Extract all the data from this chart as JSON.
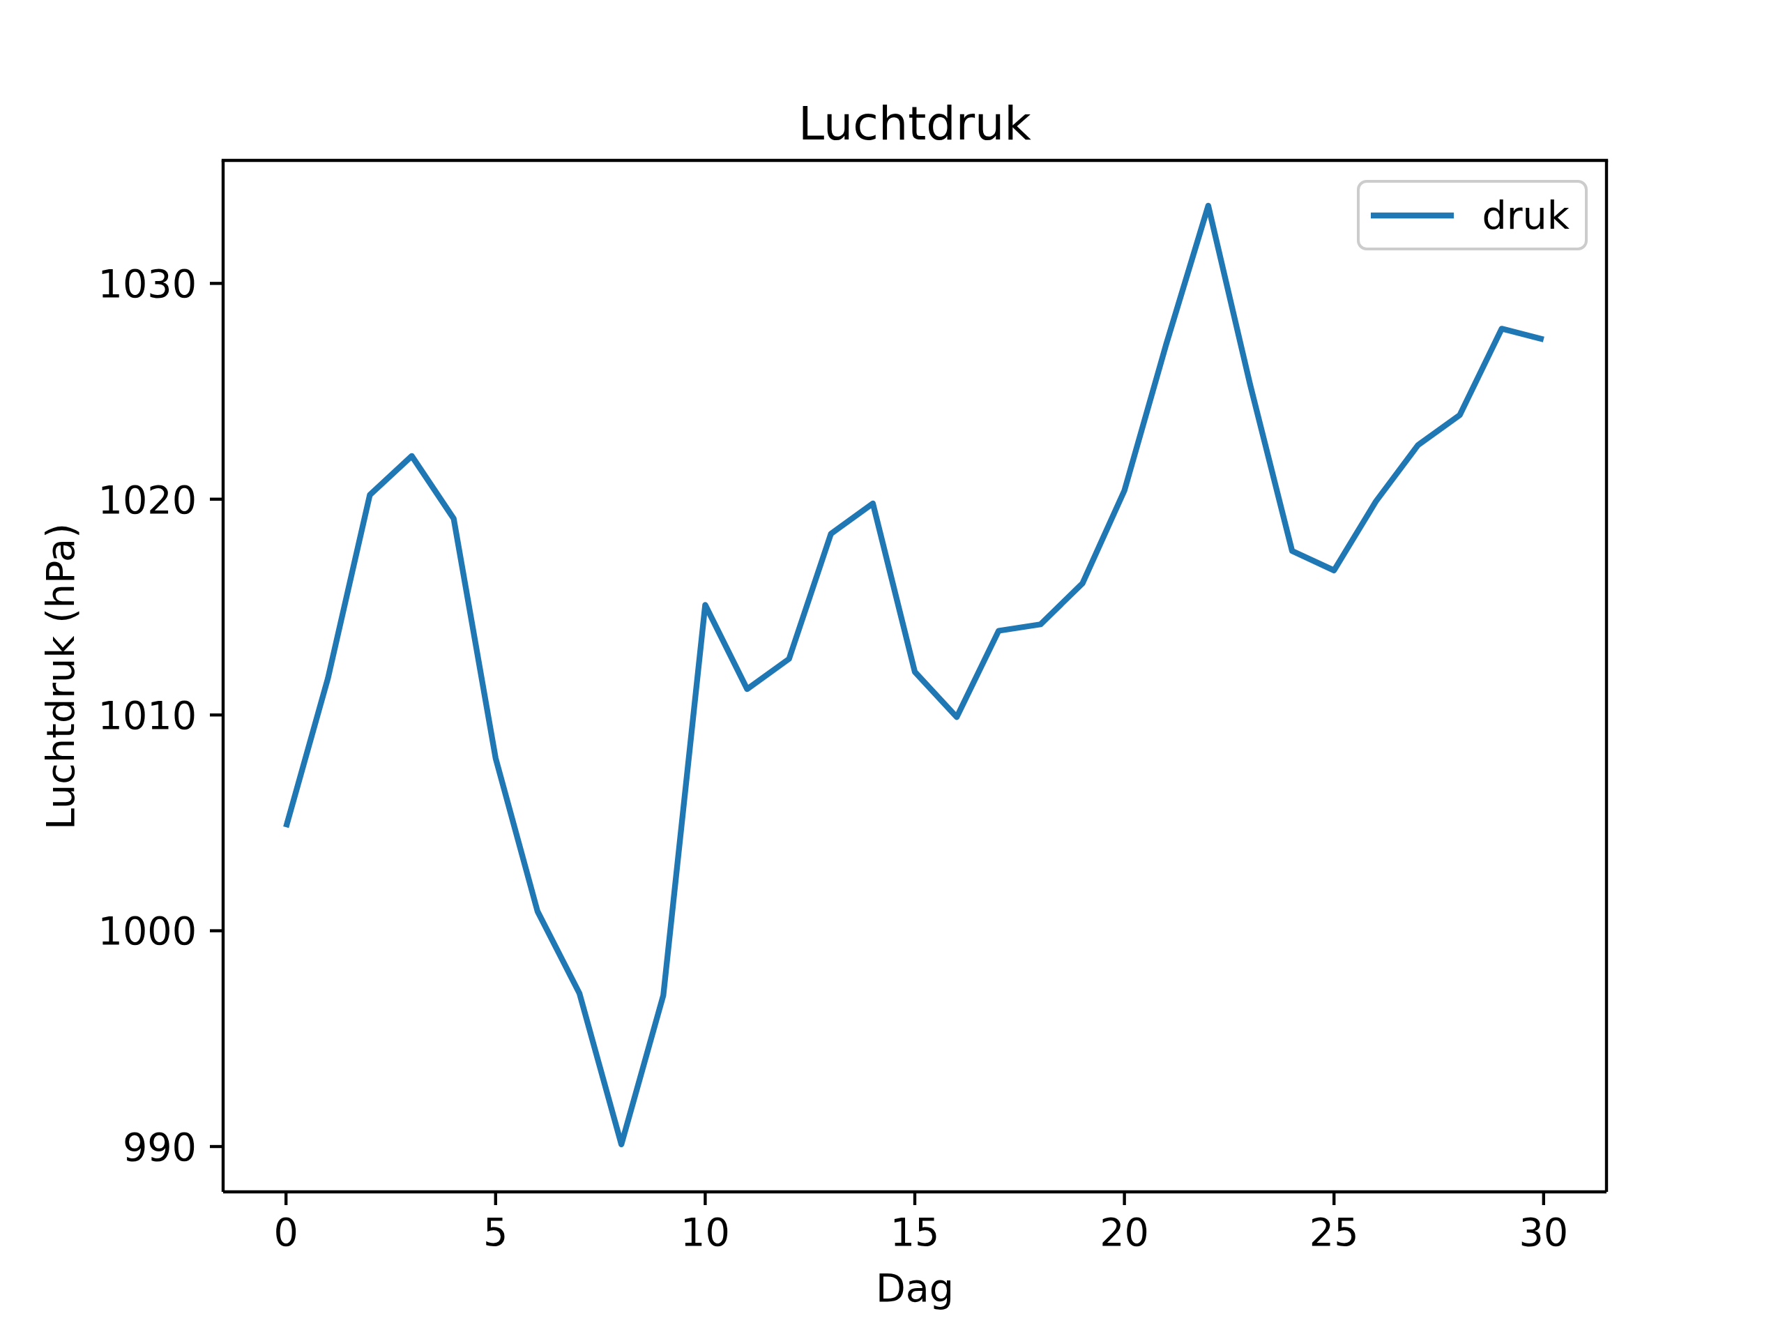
{
  "chart_data": {
    "type": "line",
    "title": "Luchtdruk",
    "xlabel": "Dag",
    "ylabel": "Luchtdruk (hPa)",
    "x": [
      0,
      1,
      2,
      3,
      4,
      5,
      6,
      7,
      8,
      9,
      10,
      11,
      12,
      13,
      14,
      15,
      16,
      17,
      18,
      19,
      20,
      21,
      22,
      23,
      24,
      25,
      26,
      27,
      28,
      29,
      30
    ],
    "series": [
      {
        "name": "druk",
        "color": "#1f77b4",
        "values": [
          1004.8,
          1011.7,
          1020.2,
          1022.0,
          1019.1,
          1008.0,
          1000.9,
          997.1,
          990.1,
          997.0,
          1015.1,
          1011.2,
          1012.6,
          1018.4,
          1019.8,
          1012.0,
          1009.9,
          1013.9,
          1014.2,
          1016.1,
          1020.4,
          1027.2,
          1033.6,
          1025.3,
          1017.6,
          1016.7,
          1019.9,
          1022.5,
          1023.9,
          1027.9,
          1027.4
        ]
      }
    ],
    "xlim": [
      -1.5,
      31.5
    ],
    "xticks": [
      0,
      5,
      10,
      15,
      20,
      25,
      30
    ],
    "ylim": [
      987.9,
      1035.7
    ],
    "yticks": [
      990,
      1000,
      1010,
      1020,
      1030
    ],
    "legend": "top right",
    "line_style": "solid"
  }
}
